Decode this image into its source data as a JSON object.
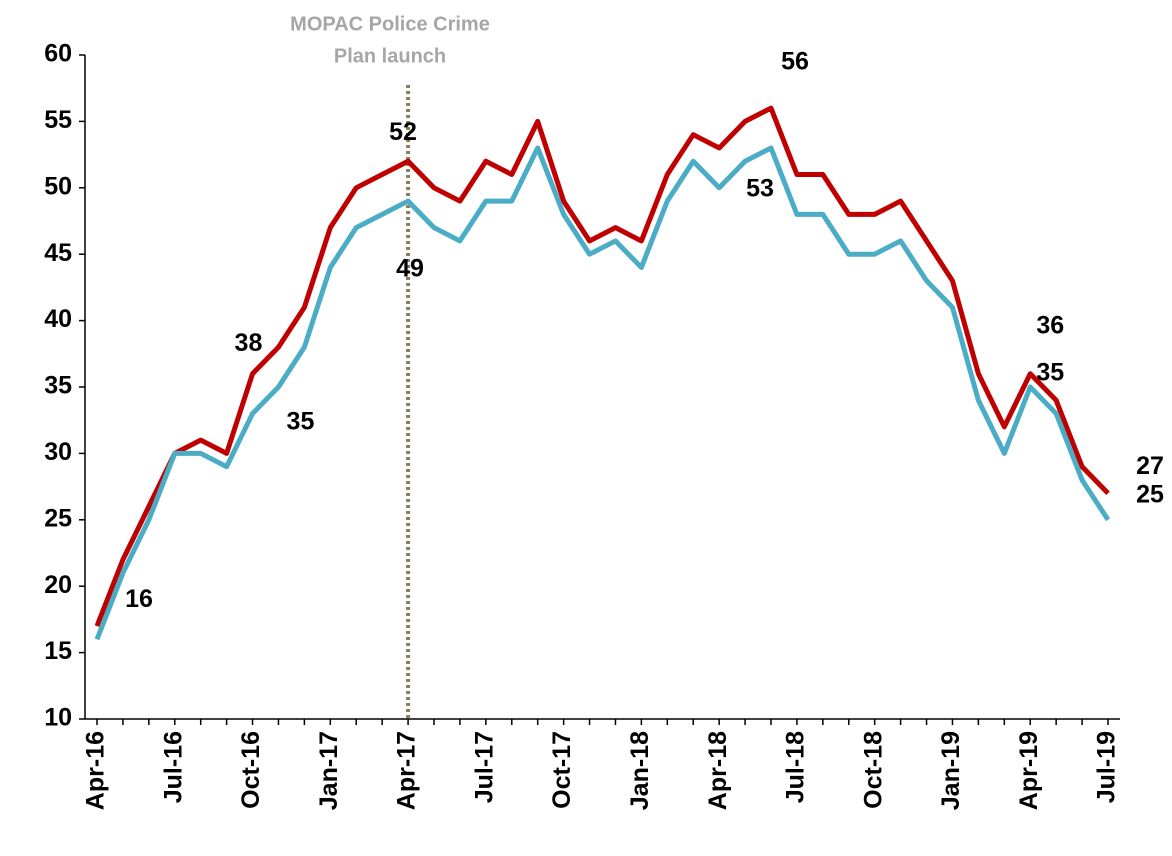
{
  "chart_data": {
    "type": "line",
    "categories": [
      "Apr-16",
      null,
      null,
      "Jul-16",
      null,
      null,
      "Oct-16",
      null,
      null,
      "Jan-17",
      null,
      null,
      "Apr-17",
      null,
      null,
      "Jul-17",
      null,
      null,
      "Oct-17",
      null,
      null,
      "Jan-18",
      null,
      null,
      "Apr-18",
      null,
      null,
      "Jul-18",
      null,
      null,
      "Oct-18",
      null,
      null,
      "Jan-19",
      null,
      null,
      "Apr-19",
      null,
      null,
      "Jul-19"
    ],
    "series": [
      {
        "color": "#c00000",
        "labels_at": [
          7,
          12,
          26,
          36,
          39
        ],
        "values": [
          17,
          22,
          26,
          30,
          31,
          30,
          36,
          38,
          41,
          47,
          50,
          51,
          52,
          50,
          49,
          52,
          51,
          55,
          49,
          46,
          47,
          46,
          51,
          54,
          53,
          55,
          56,
          51,
          51,
          48,
          48,
          49,
          46,
          43,
          36,
          32,
          36,
          34,
          29,
          27
        ]
      },
      {
        "color": "#4bacc6",
        "labels_at": [
          0,
          7,
          12,
          26,
          36,
          39
        ],
        "values": [
          16,
          21,
          25,
          30,
          30,
          29,
          33,
          35,
          38,
          44,
          47,
          48,
          49,
          47,
          46,
          49,
          49,
          53,
          48,
          45,
          46,
          44,
          49,
          52,
          50,
          52,
          53,
          48,
          48,
          45,
          45,
          46,
          43,
          41,
          34,
          30,
          35,
          33,
          28,
          25
        ]
      }
    ],
    "ylim": [
      10,
      60
    ],
    "yticks": [
      10,
      15,
      20,
      25,
      30,
      35,
      40,
      45,
      50,
      55,
      60
    ],
    "annotation": {
      "text": [
        "MOPAC Police Crime",
        "Plan launch"
      ],
      "x": "Apr-17",
      "color": "#8b7d55"
    }
  }
}
